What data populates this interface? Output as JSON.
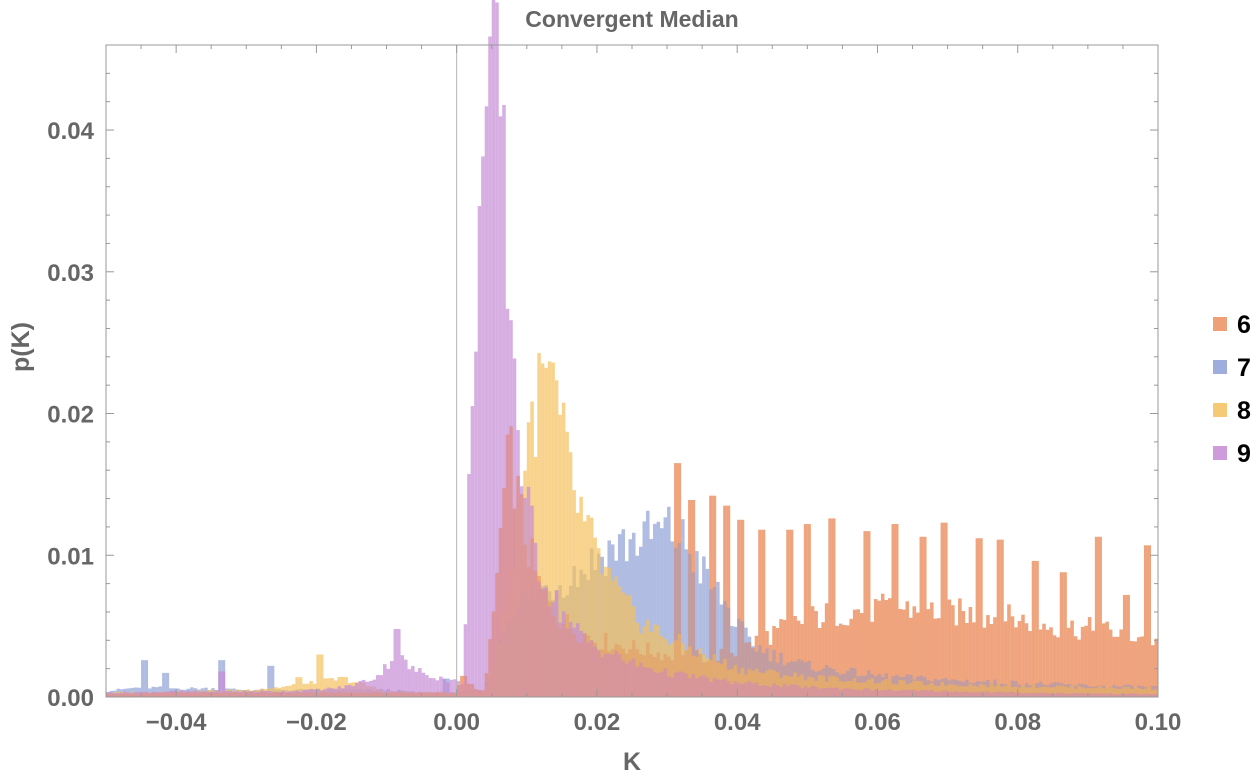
{
  "chart_data": {
    "type": "bar",
    "title": "Convergent Median",
    "xlabel": "K",
    "ylabel": "p(K)",
    "xlim": [
      -0.05,
      0.1
    ],
    "ylim": [
      0,
      0.046
    ],
    "x_ticks": [
      "−0.04",
      "−0.02",
      "0.00",
      "0.02",
      "0.04",
      "0.06",
      "0.08",
      "0.10"
    ],
    "x_tick_values": [
      -0.04,
      -0.02,
      0.0,
      0.02,
      0.04,
      0.06,
      0.08,
      0.1
    ],
    "y_ticks": [
      "0.00",
      "0.01",
      "0.02",
      "0.03",
      "0.04"
    ],
    "y_tick_values": [
      0.0,
      0.01,
      0.02,
      0.03,
      0.04
    ],
    "bin_width": 0.0005,
    "legend_position": "right",
    "series": [
      {
        "name": "6",
        "color": "#EB8F5E",
        "points": [
          [
            -0.05,
            0.0002
          ],
          [
            -0.04,
            0.0003
          ],
          [
            -0.03,
            0.0003
          ],
          [
            -0.02,
            0.0003
          ],
          [
            -0.01,
            0.0003
          ],
          [
            0.0,
            0.0003
          ],
          [
            0.0005,
            0.0017
          ],
          [
            0.003,
            0.0004
          ],
          [
            0.004,
            0.0006
          ],
          [
            0.005,
            0.0045
          ],
          [
            0.006,
            0.01
          ],
          [
            0.007,
            0.0155
          ],
          [
            0.008,
            0.017
          ],
          [
            0.009,
            0.013
          ],
          [
            0.01,
            0.011
          ],
          [
            0.011,
            0.009
          ],
          [
            0.012,
            0.0075
          ],
          [
            0.014,
            0.006
          ],
          [
            0.016,
            0.005
          ],
          [
            0.018,
            0.0045
          ],
          [
            0.02,
            0.004
          ],
          [
            0.025,
            0.0035
          ],
          [
            0.03,
            0.003
          ],
          [
            0.035,
            0.0028
          ],
          [
            0.04,
            0.0032
          ],
          [
            0.045,
            0.0045
          ],
          [
            0.05,
            0.0055
          ],
          [
            0.055,
            0.006
          ],
          [
            0.06,
            0.0062
          ],
          [
            0.065,
            0.0062
          ],
          [
            0.07,
            0.006
          ],
          [
            0.075,
            0.0058
          ],
          [
            0.08,
            0.0055
          ],
          [
            0.085,
            0.005
          ],
          [
            0.09,
            0.0048
          ],
          [
            0.095,
            0.0045
          ],
          [
            0.1,
            0.004
          ]
        ],
        "spikes": [
          [
            0.0315,
            0.0165
          ],
          [
            0.0335,
            0.0139
          ],
          [
            0.0365,
            0.0142
          ],
          [
            0.0385,
            0.0135
          ],
          [
            0.0405,
            0.0125
          ],
          [
            0.0435,
            0.0118
          ],
          [
            0.0475,
            0.0118
          ],
          [
            0.05,
            0.0122
          ],
          [
            0.0535,
            0.0126
          ],
          [
            0.0585,
            0.0117
          ],
          [
            0.0625,
            0.0122
          ],
          [
            0.0665,
            0.0113
          ],
          [
            0.0695,
            0.0123
          ],
          [
            0.0745,
            0.0112
          ],
          [
            0.0775,
            0.0111
          ],
          [
            0.0825,
            0.0096
          ],
          [
            0.0865,
            0.0088
          ],
          [
            0.0915,
            0.0113
          ],
          [
            0.0955,
            0.0072
          ],
          [
            0.0985,
            0.0107
          ]
        ]
      },
      {
        "name": "7",
        "color": "#8E9FD6",
        "points": [
          [
            -0.05,
            0.0004
          ],
          [
            -0.045,
            0.0007
          ],
          [
            -0.04,
            0.0006
          ],
          [
            -0.035,
            0.0006
          ],
          [
            -0.03,
            0.0005
          ],
          [
            -0.025,
            0.0005
          ],
          [
            -0.02,
            0.0005
          ],
          [
            -0.015,
            0.0005
          ],
          [
            -0.01,
            0.0005
          ],
          [
            -0.005,
            0.0003
          ],
          [
            0.0,
            0.0003
          ],
          [
            0.004,
            0.0004
          ],
          [
            0.006,
            0.004
          ],
          [
            0.008,
            0.0065
          ],
          [
            0.01,
            0.007
          ],
          [
            0.012,
            0.0075
          ],
          [
            0.014,
            0.008
          ],
          [
            0.016,
            0.0085
          ],
          [
            0.018,
            0.009
          ],
          [
            0.02,
            0.0098
          ],
          [
            0.022,
            0.0105
          ],
          [
            0.025,
            0.011
          ],
          [
            0.028,
            0.0115
          ],
          [
            0.03,
            0.0118
          ],
          [
            0.032,
            0.0112
          ],
          [
            0.034,
            0.0098
          ],
          [
            0.036,
            0.008
          ],
          [
            0.038,
            0.0068
          ],
          [
            0.04,
            0.005
          ],
          [
            0.042,
            0.0038
          ],
          [
            0.045,
            0.003
          ],
          [
            0.05,
            0.0022
          ],
          [
            0.06,
            0.0015
          ],
          [
            0.07,
            0.0012
          ],
          [
            0.08,
            0.001
          ],
          [
            0.09,
            0.0008
          ],
          [
            0.1,
            0.0007
          ]
        ],
        "spikes": [
          [
            -0.0445,
            0.0026
          ],
          [
            -0.0415,
            0.0017
          ],
          [
            -0.0335,
            0.0026
          ],
          [
            -0.0265,
            0.0022
          ],
          [
            -0.0015,
            0.0013
          ]
        ]
      },
      {
        "name": "8",
        "color": "#F5C05C",
        "points": [
          [
            -0.05,
            0.0003
          ],
          [
            -0.04,
            0.0004
          ],
          [
            -0.03,
            0.0005
          ],
          [
            -0.025,
            0.0007
          ],
          [
            -0.02,
            0.001
          ],
          [
            -0.018,
            0.0012
          ],
          [
            -0.016,
            0.0013
          ],
          [
            -0.014,
            0.001
          ],
          [
            -0.012,
            0.0007
          ],
          [
            -0.01,
            0.0004
          ],
          [
            0.0,
            0.0003
          ],
          [
            0.004,
            0.0004
          ],
          [
            0.006,
            0.004
          ],
          [
            0.008,
            0.009
          ],
          [
            0.009,
            0.014
          ],
          [
            0.01,
            0.018
          ],
          [
            0.011,
            0.02
          ],
          [
            0.012,
            0.0215
          ],
          [
            0.013,
            0.0225
          ],
          [
            0.014,
            0.021
          ],
          [
            0.015,
            0.0185
          ],
          [
            0.016,
            0.016
          ],
          [
            0.017,
            0.014
          ],
          [
            0.018,
            0.0125
          ],
          [
            0.019,
            0.0112
          ],
          [
            0.02,
            0.01
          ],
          [
            0.022,
            0.008
          ],
          [
            0.024,
            0.0065
          ],
          [
            0.026,
            0.0055
          ],
          [
            0.028,
            0.0048
          ],
          [
            0.03,
            0.0042
          ],
          [
            0.035,
            0.003
          ],
          [
            0.04,
            0.002
          ],
          [
            0.05,
            0.0014
          ],
          [
            0.06,
            0.0011
          ],
          [
            0.07,
            0.0009
          ],
          [
            0.08,
            0.0008
          ],
          [
            0.09,
            0.0007
          ],
          [
            0.1,
            0.0006
          ]
        ],
        "spikes": [
          [
            -0.0195,
            0.003
          ],
          [
            -0.0225,
            0.0014
          ],
          [
            0.0135,
            0.0236
          ]
        ]
      },
      {
        "name": "9",
        "color": "#C68BD6",
        "points": [
          [
            -0.05,
            0.0003
          ],
          [
            -0.04,
            0.0004
          ],
          [
            -0.03,
            0.0004
          ],
          [
            -0.025,
            0.0004
          ],
          [
            -0.02,
            0.0005
          ],
          [
            -0.016,
            0.0007
          ],
          [
            -0.014,
            0.001
          ],
          [
            -0.012,
            0.0013
          ],
          [
            -0.011,
            0.0016
          ],
          [
            -0.01,
            0.0022
          ],
          [
            -0.009,
            0.003
          ],
          [
            -0.008,
            0.0028
          ],
          [
            -0.007,
            0.0022
          ],
          [
            -0.006,
            0.0019
          ],
          [
            -0.004,
            0.0016
          ],
          [
            -0.002,
            0.0013
          ],
          [
            0.0,
            0.0011
          ],
          [
            0.001,
            0.001
          ],
          [
            0.0015,
            0.0085
          ],
          [
            0.002,
            0.0195
          ],
          [
            0.0025,
            0.026
          ],
          [
            0.003,
            0.0315
          ],
          [
            0.0035,
            0.0365
          ],
          [
            0.004,
            0.0385
          ],
          [
            0.0045,
            0.0395
          ],
          [
            0.005,
            0.042
          ],
          [
            0.0055,
            0.0445
          ],
          [
            0.006,
            0.045
          ],
          [
            0.0065,
            0.04
          ],
          [
            0.007,
            0.033
          ],
          [
            0.0075,
            0.0295
          ],
          [
            0.008,
            0.025
          ],
          [
            0.0085,
            0.0215
          ],
          [
            0.009,
            0.018
          ],
          [
            0.01,
            0.0135
          ],
          [
            0.011,
            0.011
          ],
          [
            0.012,
            0.009
          ],
          [
            0.014,
            0.0068
          ],
          [
            0.016,
            0.0052
          ],
          [
            0.018,
            0.0042
          ],
          [
            0.02,
            0.0035
          ],
          [
            0.025,
            0.0024
          ],
          [
            0.03,
            0.0017
          ],
          [
            0.04,
            0.001
          ],
          [
            0.05,
            0.0007
          ],
          [
            0.06,
            0.0005
          ],
          [
            0.07,
            0.0004
          ],
          [
            0.08,
            0.0003
          ],
          [
            0.1,
            0.0002
          ]
        ],
        "spikes": [
          [
            -0.0085,
            0.0048
          ],
          [
            -0.0335,
            0.0018
          ]
        ]
      }
    ]
  }
}
